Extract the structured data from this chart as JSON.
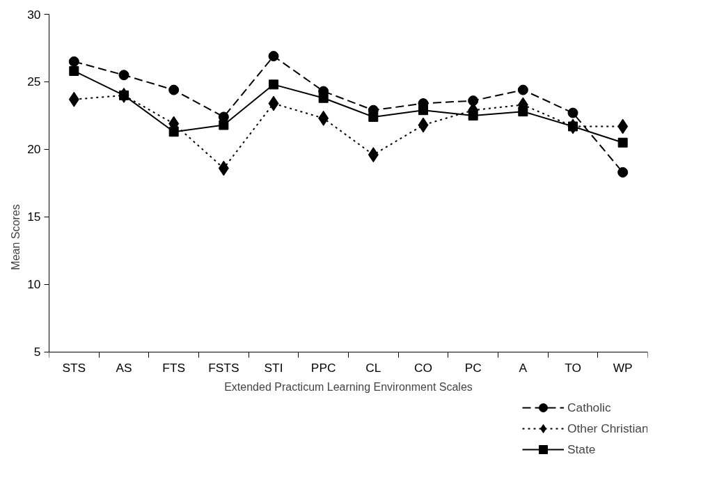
{
  "chart_data": {
    "type": "line",
    "xlabel": "Extended Practicum Learning Environment Scales",
    "ylabel": "Mean Scores",
    "categories": [
      "STS",
      "AS",
      "FTS",
      "FSTS",
      "STI",
      "PPC",
      "CL",
      "CO",
      "PC",
      "A",
      "TO",
      "WP"
    ],
    "series": [
      {
        "name": "Catholic",
        "color": "#000000",
        "line_style": "dashed",
        "marker": "circle",
        "values": [
          26.5,
          25.5,
          24.4,
          22.4,
          26.9,
          24.3,
          22.9,
          23.4,
          23.6,
          24.4,
          22.7,
          18.3
        ]
      },
      {
        "name": "Other Christian",
        "color": "#000000",
        "line_style": "dotted",
        "marker": "diamond",
        "values": [
          23.7,
          24.0,
          21.9,
          18.6,
          23.4,
          22.3,
          19.6,
          21.8,
          22.9,
          23.3,
          21.7,
          21.7
        ]
      },
      {
        "name": "State",
        "color": "#000000",
        "line_style": "solid",
        "marker": "square",
        "values": [
          25.8,
          24.0,
          21.3,
          21.8,
          24.8,
          23.8,
          22.4,
          22.9,
          22.5,
          22.8,
          21.7,
          20.5
        ]
      }
    ],
    "ylim": [
      5,
      30
    ],
    "yticks": [
      5,
      10,
      15,
      20,
      25,
      30
    ],
    "grid": false,
    "legend": "bottom right"
  }
}
